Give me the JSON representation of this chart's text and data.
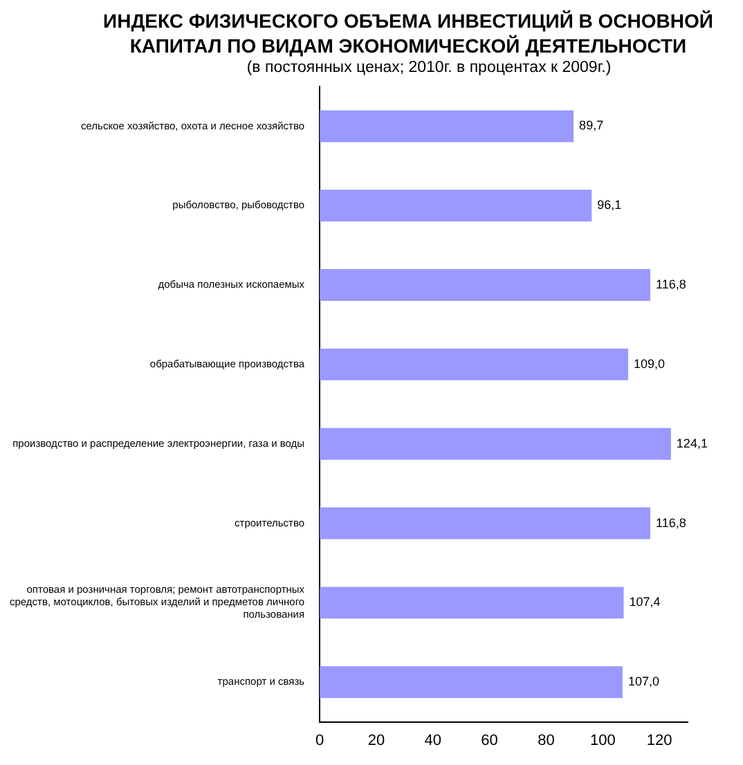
{
  "chart_data": {
    "type": "bar",
    "orientation": "horizontal",
    "title": "ИНДЕКС ФИЗИЧЕСКОГО ОБЪЕМА ИНВЕСТИЦИЙ В ОСНОВНОЙ КАПИТАЛ ПО ВИДАМ ЭКОНОМИЧЕСКОЙ ДЕЯТЕЛЬНОСТИ",
    "subtitle": "(в постоянных ценах; 2010г. в процентах к 2009г.)",
    "categories": [
      "сельское хозяйство, охота и лесное хозяйство",
      "рыболовство, рыбоводство",
      "добыча полезных ископаемых",
      "обрабатывающие производства",
      "производство и распределение электроэнергии, газа и воды",
      "строительство",
      "оптовая и розничная торговля; ремонт автотранспортных средств, мотоциклов, бытовых изделий и предметов личного пользования",
      "транспорт и связь"
    ],
    "values": [
      89.7,
      96.1,
      116.8,
      109.0,
      124.1,
      116.8,
      107.4,
      107.0
    ],
    "value_labels": [
      "89,7",
      "96,1",
      "116,8",
      "109,0",
      "124,1",
      "116,8",
      "107,4",
      "107,0"
    ],
    "color": "#9999ff",
    "xlim": [
      0,
      130
    ],
    "xticks": [
      0,
      20,
      40,
      60,
      80,
      100,
      120
    ],
    "grid": false,
    "legend": false
  }
}
